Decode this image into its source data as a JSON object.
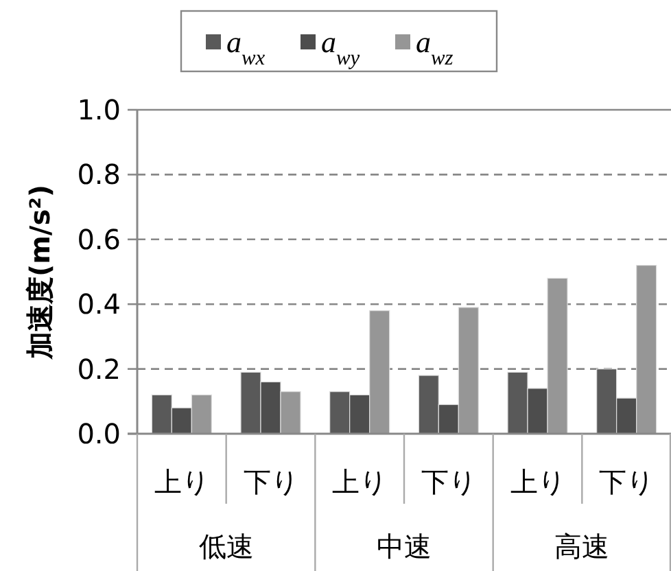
{
  "chart_data": {
    "type": "bar",
    "ylabel": "加速度(m/s²)",
    "categories": [
      "上り",
      "下り",
      "上り",
      "下り",
      "上り",
      "下り"
    ],
    "annotations": [
      "低速",
      "中速",
      "高速"
    ],
    "series": [
      {
        "name": "a$_{wx}$",
        "color": "#595959",
        "values": [
          0.12,
          0.19,
          0.13,
          0.18,
          0.19,
          0.2
        ]
      },
      {
        "name": "a$_{wy}$",
        "color": "#4d4d4d",
        "values": [
          0.08,
          0.16,
          0.12,
          0.09,
          0.14,
          0.11
        ]
      },
      {
        "name": "a$_{wz}$",
        "color": "#969696",
        "values": [
          0.12,
          0.13,
          0.38,
          0.39,
          0.48,
          0.52
        ]
      }
    ],
    "ylim": [
      0,
      1.0
    ],
    "yticks": [
      {
        "value": 0,
        "label": "0.0"
      },
      {
        "value": 0.2,
        "label": "0.2"
      },
      {
        "value": 0.4,
        "label": "0.4"
      },
      {
        "value": 0.6,
        "label": "0.6"
      },
      {
        "value": 0.8,
        "label": "0.8"
      },
      {
        "value": 1.0,
        "label": "1.0"
      }
    ],
    "grid": "y",
    "legend": "top"
  }
}
